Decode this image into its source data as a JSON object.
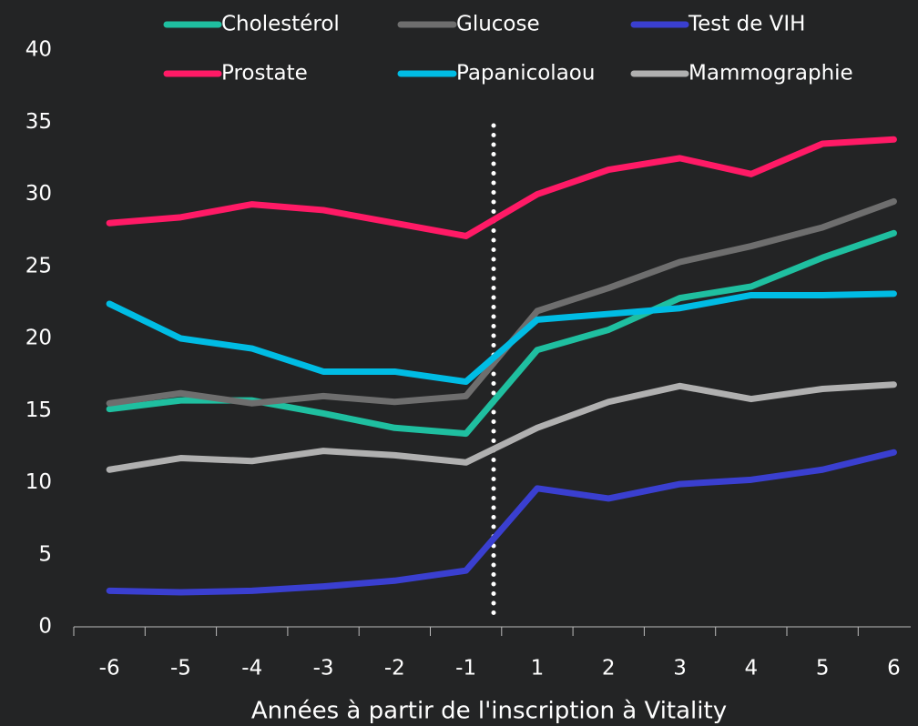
{
  "chart_data": {
    "type": "line",
    "x_label": "Années à partir de l'inscription à Vitality",
    "categories": [
      "-6",
      "-5",
      "-4",
      "-3",
      "-2",
      "-1",
      "1",
      "2",
      "3",
      "4",
      "5",
      "6"
    ],
    "ylim": [
      0,
      40
    ],
    "yticks": [
      0,
      5,
      10,
      15,
      20,
      25,
      30,
      35,
      40
    ],
    "series": [
      {
        "name": "Cholestérol",
        "color": "#1fbfa0",
        "values": [
          15.1,
          15.7,
          15.7,
          14.8,
          13.8,
          13.4,
          19.2,
          20.6,
          22.8,
          23.6,
          25.6,
          27.3
        ]
      },
      {
        "name": "Glucose",
        "color": "#6e6e6e",
        "values": [
          15.5,
          16.2,
          15.5,
          16.0,
          15.6,
          16.0,
          21.9,
          23.5,
          25.3,
          26.4,
          27.7,
          29.5
        ]
      },
      {
        "name": "Test de VIH",
        "color": "#3a3fd0",
        "values": [
          2.5,
          2.4,
          2.5,
          2.8,
          3.2,
          3.9,
          9.6,
          8.9,
          9.9,
          10.2,
          10.9,
          12.1
        ]
      },
      {
        "name": "Prostate",
        "color": "#ff1a66",
        "values": [
          28.0,
          28.4,
          29.3,
          28.9,
          28.0,
          27.1,
          30.0,
          31.7,
          32.5,
          31.4,
          33.5,
          33.8
        ]
      },
      {
        "name": "Papanicolaou",
        "color": "#00bce4",
        "values": [
          22.4,
          20.0,
          19.3,
          17.7,
          17.7,
          17.0,
          21.3,
          21.7,
          22.1,
          23.0,
          23.0,
          23.1
        ]
      },
      {
        "name": "Mammographie",
        "color": "#b0b0b0",
        "values": [
          10.9,
          11.7,
          11.5,
          12.2,
          11.9,
          11.4,
          13.8,
          15.6,
          16.7,
          15.8,
          16.5,
          16.8
        ]
      }
    ]
  }
}
